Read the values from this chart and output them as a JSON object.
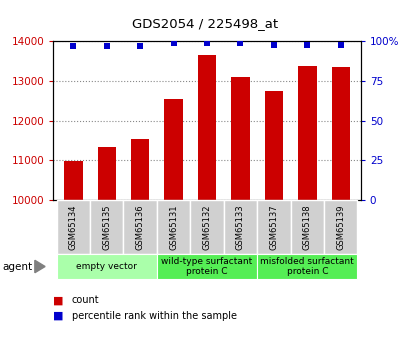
{
  "title": "GDS2054 / 225498_at",
  "samples": [
    "GSM65134",
    "GSM65135",
    "GSM65136",
    "GSM65131",
    "GSM65132",
    "GSM65133",
    "GSM65137",
    "GSM65138",
    "GSM65139"
  ],
  "counts": [
    10980,
    11330,
    11540,
    12560,
    13650,
    13100,
    12760,
    13380,
    13360
  ],
  "percentile_ranks": [
    97,
    97,
    97,
    99,
    99,
    99,
    98,
    98,
    98
  ],
  "bar_color": "#cc0000",
  "dot_color": "#0000cc",
  "ylim_left": [
    10000,
    14000
  ],
  "ylim_right": [
    0,
    100
  ],
  "yticks_left": [
    10000,
    11000,
    12000,
    13000,
    14000
  ],
  "yticks_right": [
    0,
    25,
    50,
    75,
    100
  ],
  "groups": [
    {
      "label": "empty vector",
      "indices": [
        0,
        1,
        2
      ],
      "color": "#aaffaa"
    },
    {
      "label": "wild-type surfactant\nprotein C",
      "indices": [
        3,
        4,
        5
      ],
      "color": "#55ee55"
    },
    {
      "label": "misfolded surfactant\nprotein C",
      "indices": [
        6,
        7,
        8
      ],
      "color": "#55ee55"
    }
  ],
  "agent_label": "agent",
  "legend_items": [
    {
      "label": "count",
      "color": "#cc0000"
    },
    {
      "label": "percentile rank within the sample",
      "color": "#0000cc"
    }
  ],
  "grid_color": "#888888",
  "background_color": "#ffffff",
  "tick_label_color_left": "#cc0000",
  "tick_label_color_right": "#0000cc",
  "sample_box_color": "#d0d0d0",
  "bar_width": 0.55
}
